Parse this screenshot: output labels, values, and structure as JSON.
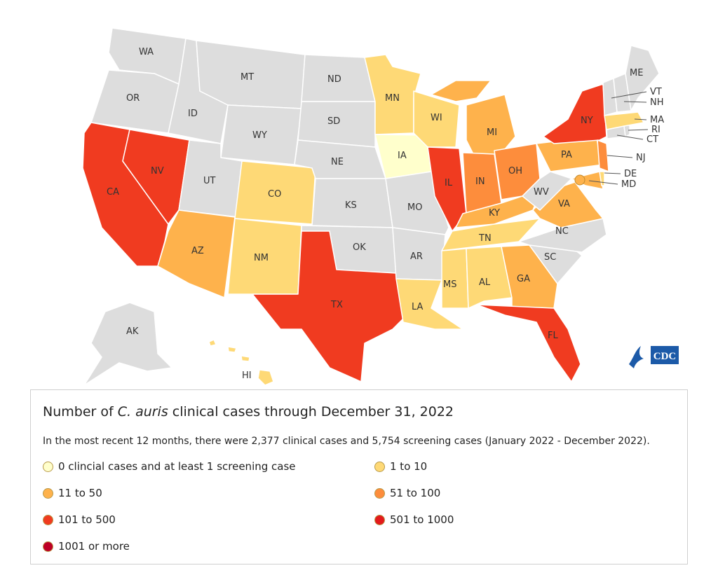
{
  "legend": {
    "title_prefix": "Number of ",
    "title_italic": "C. auris",
    "title_suffix": " clinical cases through December 31, 2022",
    "subtitle": "In the most recent 12 months, there were 2,377 clinical cases and 5,754 screening cases (January 2022 - December 2022).",
    "items": [
      {
        "label": "0 clincial cases and at least 1 screening case",
        "color": "#ffffcc"
      },
      {
        "label": "1 to 10",
        "color": "#fed976"
      },
      {
        "label": "11 to 50",
        "color": "#feb24c"
      },
      {
        "label": "51 to 100",
        "color": "#fd8d3c"
      },
      {
        "label": "101 to 500",
        "color": "#f03b20"
      },
      {
        "label": "501 to 1000",
        "color": "#e31a1c"
      },
      {
        "label": "1001 or more",
        "color": "#bd0026"
      }
    ]
  },
  "colors": {
    "no_data": "#dddddd",
    "screening_only": "#ffffcc",
    "c1_10": "#fed976",
    "c11_50": "#feb24c",
    "c51_100": "#fd8d3c",
    "c101_500": "#f03b20",
    "cdc_blue": "#1c5aa8"
  },
  "map": {
    "states": {
      "WA": "WA",
      "OR": "OR",
      "CA": "CA",
      "NV": "NV",
      "ID": "ID",
      "MT": "MT",
      "WY": "WY",
      "UT": "UT",
      "AZ": "AZ",
      "CO": "CO",
      "NM": "NM",
      "ND": "ND",
      "SD": "SD",
      "NE": "NE",
      "KS": "KS",
      "OK": "OK",
      "TX": "TX",
      "MN": "MN",
      "IA": "IA",
      "MO": "MO",
      "AR": "AR",
      "LA": "LA",
      "WI": "WI",
      "IL": "IL",
      "MI": "MI",
      "IN": "IN",
      "OH": "OH",
      "KY": "KY",
      "TN": "TN",
      "MS": "MS",
      "AL": "AL",
      "GA": "GA",
      "FL": "FL",
      "SC": "SC",
      "NC": "NC",
      "VA": "VA",
      "WV": "WV",
      "PA": "PA",
      "NY": "NY",
      "ME": "ME",
      "VT": "VT",
      "NH": "NH",
      "MA": "MA",
      "RI": "RI",
      "CT": "CT",
      "NJ": "NJ",
      "DE": "DE",
      "MD": "MD",
      "AK": "AK",
      "HI": "HI"
    }
  },
  "logo": {
    "text": "CDC"
  }
}
